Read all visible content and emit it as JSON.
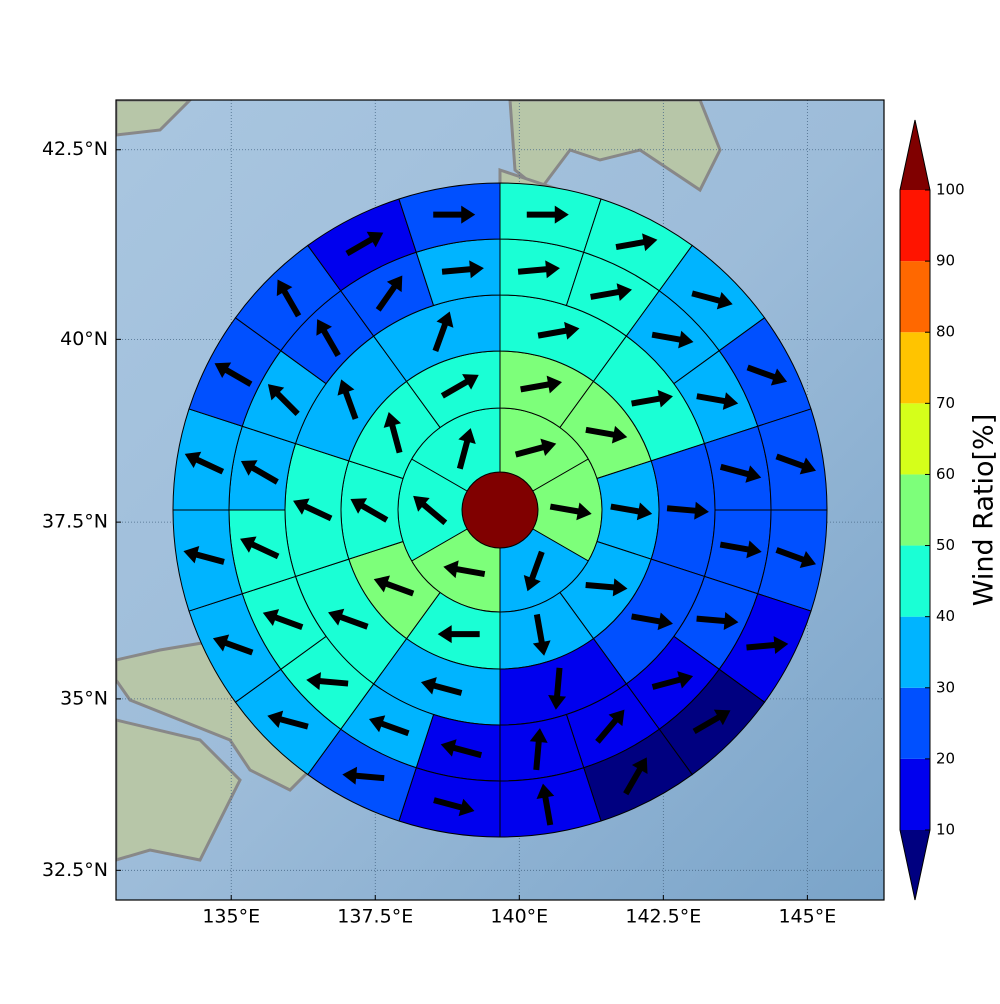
{
  "chart_data": {
    "type": "polar-sectors",
    "xlim": [
      133,
      146.33
    ],
    "ylim": [
      32.06,
      43.14
    ],
    "xticks": [
      {
        "value": 135,
        "label": "135°E"
      },
      {
        "value": 137.5,
        "label": "137.5°E"
      },
      {
        "value": 140,
        "label": "140°E"
      },
      {
        "value": 142.5,
        "label": "142.5°E"
      },
      {
        "value": 145,
        "label": "145°E"
      }
    ],
    "yticks": [
      {
        "value": 32.5,
        "label": "32.5°N"
      },
      {
        "value": 35,
        "label": "35°N"
      },
      {
        "value": 37.5,
        "label": "37.5°N"
      },
      {
        "value": 40,
        "label": "40°N"
      },
      {
        "value": 42.5,
        "label": "42.5°N"
      }
    ],
    "grid": true,
    "center_value": 100,
    "rings": [
      {
        "values": [
          55,
          55,
          35,
          55,
          45,
          45
        ],
        "directions": [
          75,
          100,
          200,
          280,
          310,
          15
        ]
      },
      {
        "values": [
          55,
          55,
          35,
          35,
          35,
          45,
          55,
          45,
          45,
          45
        ],
        "directions": [
          80,
          100,
          100,
          95,
          170,
          270,
          290,
          300,
          345,
          60
        ]
      },
      {
        "values": [
          45,
          45,
          25,
          25,
          15,
          35,
          45,
          45,
          35,
          35
        ],
        "directions": [
          80,
          80,
          95,
          100,
          185,
          285,
          290,
          295,
          340,
          20
        ]
      },
      {
        "values": [
          45,
          45,
          35,
          35,
          25,
          25,
          25,
          15,
          15,
          15,
          15,
          35,
          45,
          45,
          45,
          35,
          35,
          25,
          25,
          35
        ],
        "directions": [
          85,
          80,
          100,
          100,
          105,
          100,
          95,
          75,
          40,
          5,
          285,
          290,
          275,
          290,
          295,
          300,
          315,
          330,
          35,
          85
        ]
      },
      {
        "values": [
          45,
          45,
          35,
          25,
          25,
          25,
          15,
          5,
          5,
          15,
          15,
          25,
          35,
          35,
          35,
          35,
          25,
          25,
          15,
          25
        ],
        "directions": [
          90,
          80,
          105,
          110,
          110,
          110,
          85,
          60,
          30,
          350,
          105,
          275,
          285,
          290,
          285,
          295,
          300,
          330,
          60,
          90
        ]
      }
    ],
    "colorbar": {
      "label": "Wind Ratio[%]",
      "levels": [
        10,
        20,
        30,
        40,
        50,
        60,
        70,
        80,
        90,
        100
      ],
      "colors": [
        "#0000ee",
        "#0050ff",
        "#00b4ff",
        "#1affd5",
        "#7dff7a",
        "#d5ff1a",
        "#ffc400",
        "#ff6800",
        "#ff1400"
      ],
      "under_color": "#000080",
      "over_color": "#800000"
    }
  }
}
